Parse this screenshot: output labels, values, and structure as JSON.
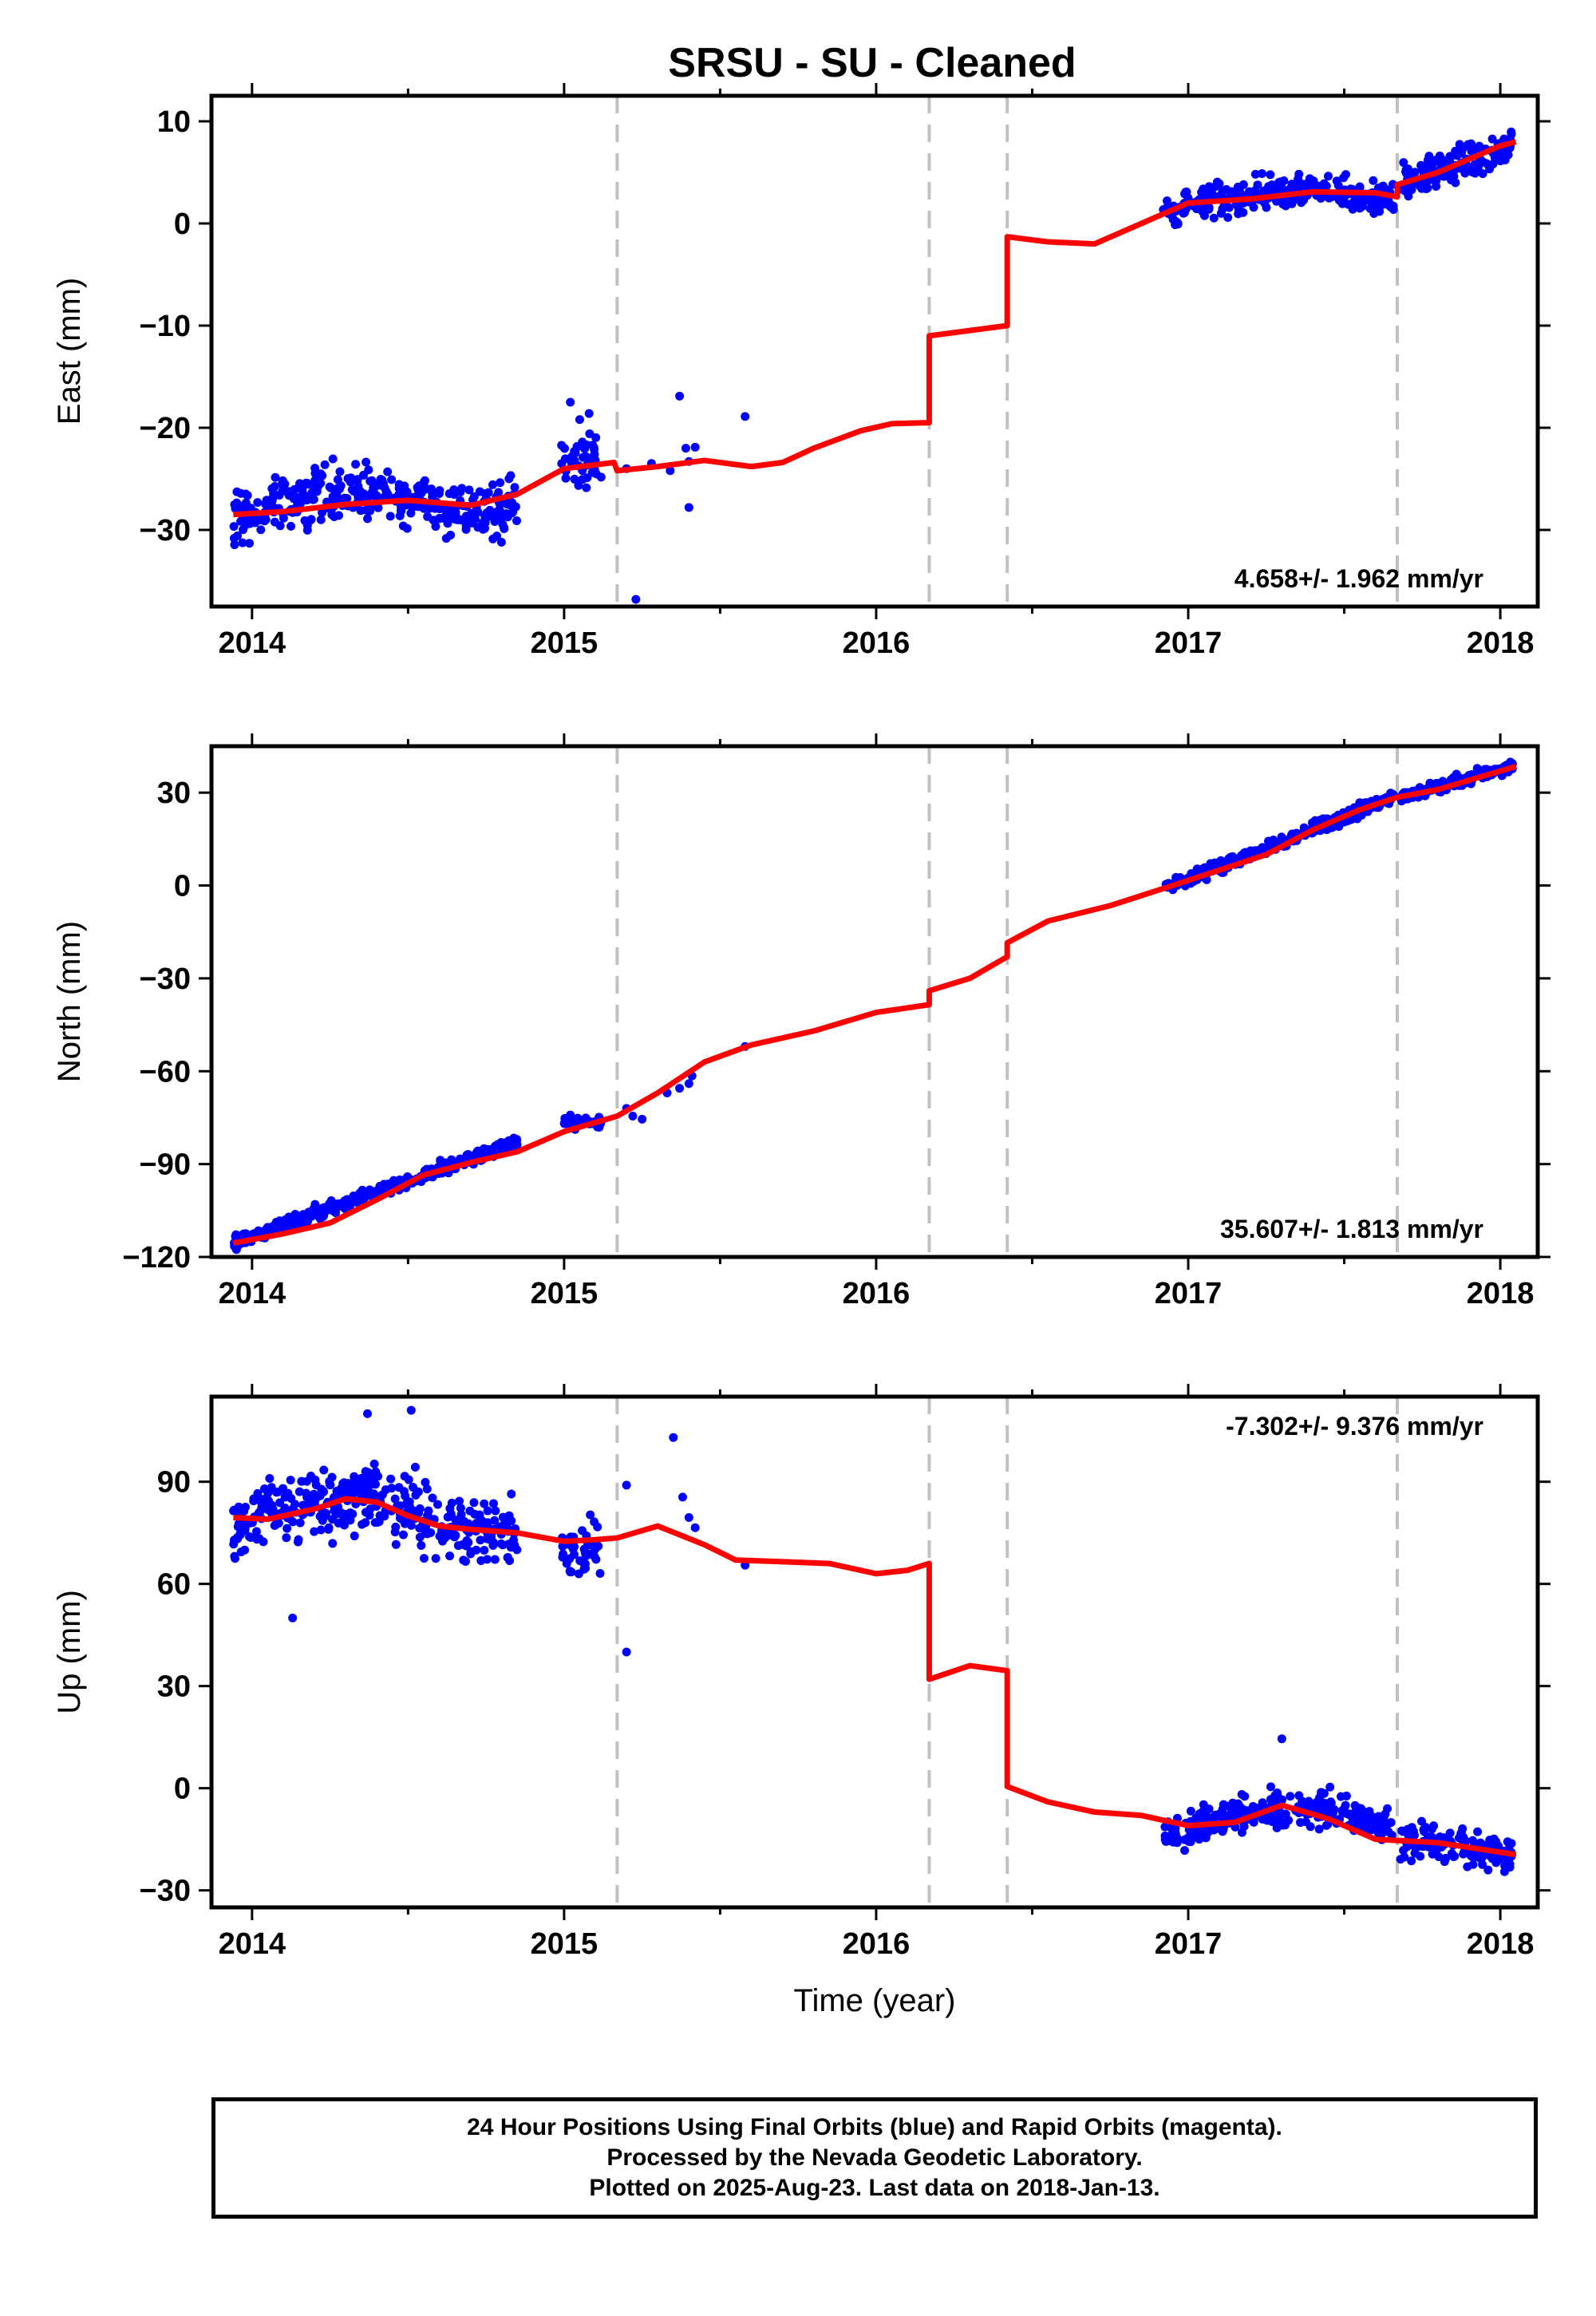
{
  "page_title": "SRSU  - SU - Cleaned",
  "caption": {
    "line1": "24 Hour Positions Using Final Orbits (blue) and Rapid Orbits (magenta).",
    "line2": "Processed by the Nevada Geodetic Laboratory.",
    "line3": "Plotted on 2025-Aug-23. Last data on 2018-Jan-13."
  },
  "colors": {
    "data_points": "#0000ff",
    "model_fit": "#ff0000",
    "step_lines": "#c0c0c0",
    "axes": "#000000"
  },
  "chart_data": [
    {
      "type": "scatter",
      "title": "SRSU  - SU - Cleaned",
      "xlabel": "",
      "ylabel": "East (mm)",
      "xlim": [
        2013.87,
        2018.12
      ],
      "ylim": [
        -37.5,
        12.5
      ],
      "xticks": [
        2014,
        2015,
        2016,
        2017,
        2018
      ],
      "yticks": [
        10,
        0,
        -10,
        -20,
        -30
      ],
      "ytick_labels": [
        "10",
        "0",
        "−10",
        "−20",
        "−30"
      ],
      "grid": false,
      "step_epochs": [
        2015.17,
        2016.17,
        2016.42,
        2017.67
      ],
      "rate_annotation": "4.658+/- 1.962 mm/yr",
      "rate_position": "bottom-right",
      "model_fit": {
        "name": "model",
        "x": [
          2013.94,
          2014.1,
          2014.3,
          2014.5,
          2014.7,
          2014.85,
          2015.0,
          2015.16,
          2015.17,
          2015.3,
          2015.45,
          2015.6,
          2015.7,
          2015.8,
          2015.95,
          2016.05,
          2016.17,
          2016.17,
          2016.42,
          2016.42,
          2016.55,
          2016.7,
          2016.85,
          2017.0,
          2017.2,
          2017.4,
          2017.6,
          2017.67,
          2017.67,
          2017.8,
          2018.0,
          2018.05
        ],
        "y": [
          -28.5,
          -28.2,
          -27.5,
          -27.1,
          -27.6,
          -26.5,
          -24.0,
          -23.4,
          -24.2,
          -23.8,
          -23.2,
          -23.8,
          -23.4,
          -22.0,
          -20.3,
          -19.6,
          -19.5,
          -11.0,
          -10.0,
          -1.3,
          -1.8,
          -2.0,
          0.0,
          2.0,
          2.4,
          3.1,
          3.0,
          2.6,
          3.8,
          5.0,
          7.6,
          8.0
        ]
      },
      "segments": [
        {
          "x0": 2013.94,
          "x1": 2014.85,
          "base": -28.0,
          "trend": 1.4,
          "amp": 1.0,
          "noise": 2.3,
          "n": 360
        },
        {
          "x0": 2014.99,
          "x1": 2015.12,
          "base": -23.0,
          "trend": 0,
          "amp": 0,
          "noise": 2.3,
          "n": 45
        },
        {
          "x0": 2016.92,
          "x1": 2017.66,
          "base": 1.5,
          "trend": 2.0,
          "amp": 0.8,
          "noise": 1.4,
          "n": 280
        },
        {
          "x0": 2017.68,
          "x1": 2018.04,
          "base": 4.0,
          "trend": 10.0,
          "amp": 0,
          "noise": 1.3,
          "n": 150
        }
      ],
      "points": [
        {
          "x": 2015.02,
          "y": -17.5
        },
        {
          "x": 2015.05,
          "y": -19.2
        },
        {
          "x": 2015.08,
          "y": -18.6
        },
        {
          "x": 2015.2,
          "y": -24.0
        },
        {
          "x": 2015.23,
          "y": -36.8
        },
        {
          "x": 2015.28,
          "y": -23.5
        },
        {
          "x": 2015.34,
          "y": -24.2
        },
        {
          "x": 2015.37,
          "y": -16.9
        },
        {
          "x": 2015.39,
          "y": -22.0
        },
        {
          "x": 2015.4,
          "y": -27.8
        },
        {
          "x": 2015.4,
          "y": -23.3
        },
        {
          "x": 2015.42,
          "y": -21.9
        },
        {
          "x": 2015.58,
          "y": -18.9
        }
      ]
    },
    {
      "type": "scatter",
      "title": "",
      "xlabel": "",
      "ylabel": "North (mm)",
      "xlim": [
        2013.87,
        2018.12
      ],
      "ylim": [
        -120,
        45
      ],
      "xticks": [
        2014,
        2015,
        2016,
        2017,
        2018
      ],
      "yticks": [
        30,
        0,
        -30,
        -60,
        -90,
        -120
      ],
      "ytick_labels": [
        "30",
        "0",
        "−30",
        "−60",
        "−90",
        "−120"
      ],
      "grid": false,
      "step_epochs": [
        2015.17,
        2016.17,
        2016.42,
        2017.67
      ],
      "rate_annotation": "35.607+/- 1.813 mm/yr",
      "rate_position": "bottom-right",
      "model_fit": {
        "name": "model",
        "x": [
          2013.94,
          2014.1,
          2014.25,
          2014.4,
          2014.55,
          2014.7,
          2014.85,
          2015.0,
          2015.17,
          2015.3,
          2015.45,
          2015.6,
          2015.8,
          2016.0,
          2016.17,
          2016.17,
          2016.3,
          2016.42,
          2016.42,
          2016.55,
          2016.75,
          2016.95,
          2017.1,
          2017.25,
          2017.4,
          2017.55,
          2017.67,
          2017.67,
          2017.8,
          2018.05
        ],
        "y": [
          -115.5,
          -112.5,
          -109.0,
          -101.5,
          -93.5,
          -89.5,
          -86.0,
          -79.5,
          -74.5,
          -67.0,
          -57.0,
          -51.5,
          -47.0,
          -41.0,
          -38.5,
          -34.0,
          -30.0,
          -23.0,
          -18.5,
          -11.5,
          -6.5,
          0.0,
          5.0,
          10.0,
          18.0,
          24.5,
          28.5,
          28.5,
          31.0,
          38.5
        ]
      },
      "segments": [
        {
          "x0": 2013.94,
          "x1": 2014.85,
          "base": -115.5,
          "trend": 36.0,
          "amp": 0,
          "noise": 1.8,
          "n": 380
        },
        {
          "x0": 2015.0,
          "x1": 2015.12,
          "base": -76.5,
          "trend": 0,
          "amp": 0,
          "noise": 1.6,
          "n": 45
        },
        {
          "x0": 2016.92,
          "x1": 2017.66,
          "base": -1.0,
          "trend": 40.0,
          "amp": 0,
          "noise": 1.8,
          "n": 300
        },
        {
          "x0": 2017.68,
          "x1": 2018.04,
          "base": 28.5,
          "trend": 28.0,
          "amp": 0,
          "noise": 1.5,
          "n": 150
        }
      ],
      "points": [
        {
          "x": 2015.2,
          "y": -72.0
        },
        {
          "x": 2015.22,
          "y": -74.5
        },
        {
          "x": 2015.25,
          "y": -75.5
        },
        {
          "x": 2015.33,
          "y": -67.0
        },
        {
          "x": 2015.37,
          "y": -65.5
        },
        {
          "x": 2015.4,
          "y": -64.0
        },
        {
          "x": 2015.41,
          "y": -61.5
        },
        {
          "x": 2015.58,
          "y": -52.0
        }
      ]
    },
    {
      "type": "scatter",
      "title": "",
      "xlabel": "Time (year)",
      "ylabel": "Up (mm)",
      "xlim": [
        2013.87,
        2018.12
      ],
      "ylim": [
        -35,
        115
      ],
      "xticks": [
        2014,
        2015,
        2016,
        2017,
        2018
      ],
      "yticks": [
        90,
        60,
        30,
        0,
        -30
      ],
      "ytick_labels": [
        "90",
        "60",
        "30",
        "0",
        "−30"
      ],
      "grid": false,
      "step_epochs": [
        2015.17,
        2016.17,
        2016.42,
        2017.67
      ],
      "rate_annotation": "-7.302+/- 9.376 mm/yr",
      "rate_position": "top-right",
      "model_fit": {
        "name": "model",
        "x": [
          2013.94,
          2014.05,
          2014.2,
          2014.3,
          2014.4,
          2014.5,
          2014.6,
          2014.7,
          2014.85,
          2015.0,
          2015.1,
          2015.17,
          2015.3,
          2015.45,
          2015.55,
          2015.7,
          2015.85,
          2016.0,
          2016.1,
          2016.17,
          2016.17,
          2016.3,
          2016.42,
          2016.42,
          2016.55,
          2016.7,
          2016.85,
          2017.0,
          2017.15,
          2017.3,
          2017.45,
          2017.6,
          2017.8,
          2018.05
        ],
        "y": [
          79.5,
          79.0,
          82.0,
          85.0,
          84.0,
          80.0,
          77.0,
          76.0,
          75.0,
          72.5,
          73.0,
          73.5,
          77.0,
          71.5,
          67.0,
          66.5,
          66.0,
          63.0,
          64.0,
          66.0,
          32.0,
          36.0,
          34.5,
          0.5,
          -4.0,
          -7.0,
          -8.0,
          -11.0,
          -10.0,
          -5.0,
          -9.0,
          -15.0,
          -16.0,
          -19.5
        ]
      },
      "segments": [
        {
          "x0": 2013.94,
          "x1": 2014.85,
          "base": 80.0,
          "trend": 0,
          "amp": 5.0,
          "noise": 8.5,
          "n": 380
        },
        {
          "x0": 2014.99,
          "x1": 2015.12,
          "base": 70.0,
          "trend": 0,
          "amp": 0,
          "noise": 7.0,
          "n": 45
        },
        {
          "x0": 2016.92,
          "x1": 2017.66,
          "base": -11.0,
          "trend": 3.0,
          "amp": 4.0,
          "noise": 4.5,
          "n": 300
        },
        {
          "x0": 2017.68,
          "x1": 2018.04,
          "base": -15.5,
          "trend": -10.0,
          "amp": 0,
          "noise": 4.5,
          "n": 150
        }
      ],
      "points": [
        {
          "x": 2014.13,
          "y": 50.0
        },
        {
          "x": 2014.37,
          "y": 110.0
        },
        {
          "x": 2014.51,
          "y": 111.0
        },
        {
          "x": 2015.2,
          "y": 89.0
        },
        {
          "x": 2015.2,
          "y": 40.0
        },
        {
          "x": 2015.35,
          "y": 103.0
        },
        {
          "x": 2015.38,
          "y": 85.5
        },
        {
          "x": 2015.4,
          "y": 79.5
        },
        {
          "x": 2015.42,
          "y": 76.5
        },
        {
          "x": 2015.58,
          "y": 65.5
        },
        {
          "x": 2017.3,
          "y": 14.5
        }
      ]
    }
  ]
}
